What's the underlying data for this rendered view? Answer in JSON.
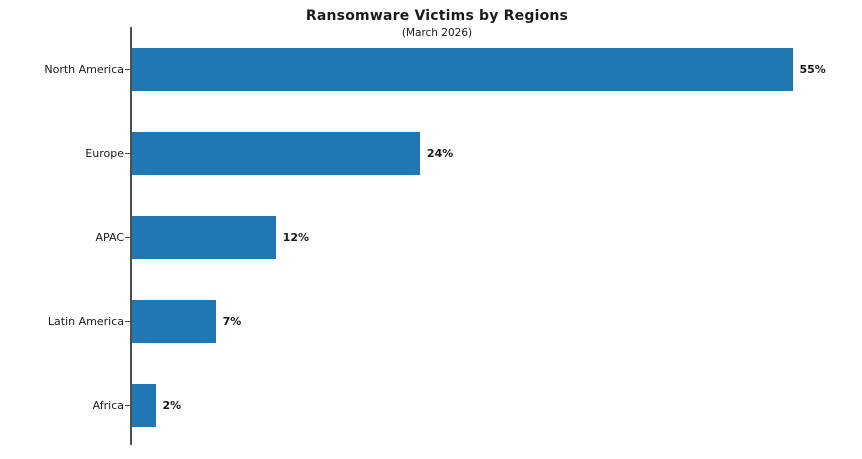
{
  "chart_data": {
    "type": "bar",
    "orientation": "horizontal",
    "title": "Ransomware Victims by Regions",
    "subtitle": "(March 2026)",
    "categories": [
      "North America",
      "Europe",
      "APAC",
      "Latin America",
      "Africa"
    ],
    "values": [
      55,
      24,
      12,
      7,
      2
    ],
    "value_labels": [
      "55%",
      "24%",
      "12%",
      "7%",
      "2%"
    ],
    "unit": "%",
    "bar_color": "#1f77b4",
    "axis_color": "#4d4d4d",
    "text_color": "#1a1a1a",
    "xlim": [
      0,
      60
    ],
    "grid": false,
    "legend": "none",
    "x_axis_visible": false
  }
}
